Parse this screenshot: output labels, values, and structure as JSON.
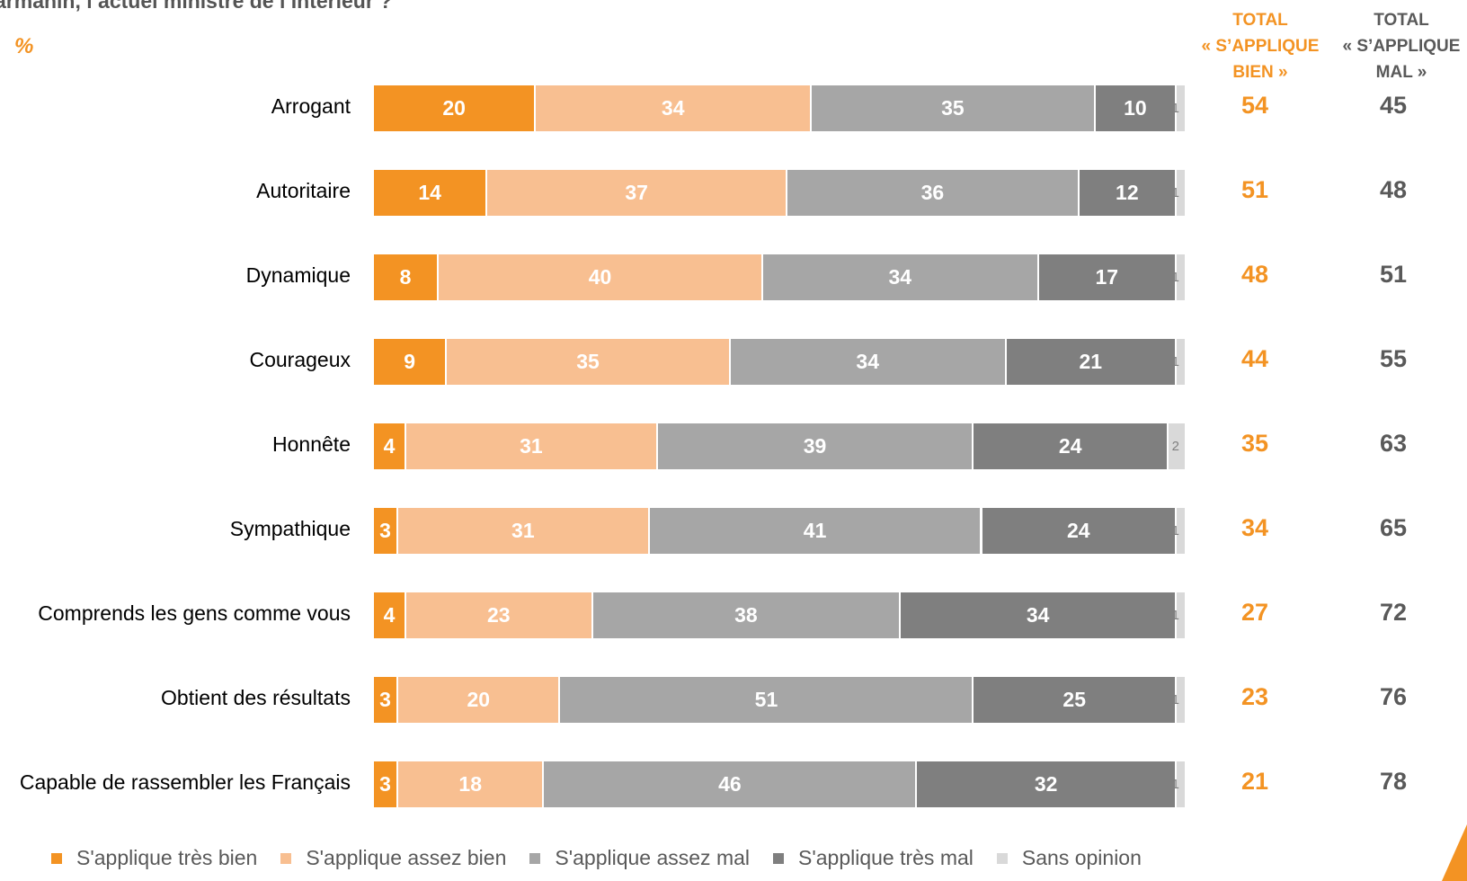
{
  "title": "armanin, l’actuel ministre de l’Intérieur ?",
  "unit": "%",
  "columns": {
    "bien": [
      "TOTAL",
      "« S’APPLIQUE",
      "BIEN »"
    ],
    "mal": [
      "TOTAL",
      "« S’APPLIQUE",
      "MAL »"
    ]
  },
  "colors": {
    "tres_bien": "#F39323",
    "assez_bien": "#F8BF91",
    "assez_mal": "#A6A6A6",
    "tres_mal": "#7F7F7F",
    "sans_opinion": "#D9D9D9",
    "total_bien": "#F39323",
    "total_mal": "#595959"
  },
  "chart_data": {
    "type": "bar",
    "orientation": "horizontal",
    "stacked": true,
    "categories": [
      "Arrogant",
      "Autoritaire",
      "Dynamique",
      "Courageux",
      "Honnête",
      "Sympathique",
      "Comprends les gens comme vous",
      "Obtient des résultats",
      "Capable de rassembler les Français"
    ],
    "series": [
      {
        "name": "S'applique très bien",
        "values": [
          20,
          14,
          8,
          9,
          4,
          3,
          4,
          3,
          3
        ]
      },
      {
        "name": "S'applique assez bien",
        "values": [
          34,
          37,
          40,
          35,
          31,
          31,
          23,
          20,
          18
        ]
      },
      {
        "name": "S'applique assez mal",
        "values": [
          35,
          36,
          34,
          34,
          39,
          41,
          38,
          51,
          46
        ]
      },
      {
        "name": "S'applique très mal",
        "values": [
          10,
          12,
          17,
          21,
          24,
          24,
          34,
          25,
          32
        ]
      },
      {
        "name": "Sans opinion",
        "values": [
          1,
          1,
          1,
          1,
          2,
          1,
          1,
          1,
          1
        ]
      }
    ],
    "totals": {
      "bien": [
        54,
        51,
        48,
        44,
        35,
        34,
        27,
        23,
        21
      ],
      "mal": [
        45,
        48,
        51,
        55,
        63,
        65,
        72,
        76,
        78
      ]
    },
    "legend_position": "bottom"
  }
}
